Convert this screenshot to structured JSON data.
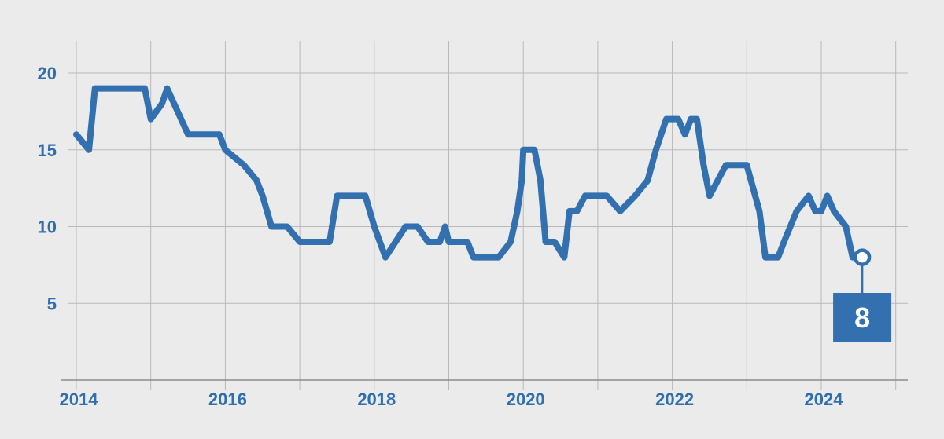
{
  "chart_data": {
    "type": "line",
    "title": "",
    "xlabel": "",
    "ylabel": "",
    "xlim": [
      2014,
      2025.1
    ],
    "ylim": [
      0,
      22
    ],
    "grid": true,
    "x_ticks": [
      2014,
      2016,
      2018,
      2020,
      2022,
      2024
    ],
    "x_tick_labels": [
      "2014",
      "2016",
      "2018",
      "2020",
      "2022",
      "2024"
    ],
    "x_minor_ticks": [
      2015,
      2017,
      2019,
      2021,
      2023,
      2025
    ],
    "y_ticks": [
      5,
      10,
      15,
      20
    ],
    "y_tick_labels": [
      "5",
      "10",
      "15",
      "20"
    ],
    "series": [
      {
        "color": "#3270b0",
        "points": [
          [
            2014.0,
            16
          ],
          [
            2014.17,
            15
          ],
          [
            2014.25,
            19
          ],
          [
            2014.5,
            19
          ],
          [
            2014.75,
            19
          ],
          [
            2014.92,
            19
          ],
          [
            2015.0,
            17
          ],
          [
            2015.15,
            18
          ],
          [
            2015.22,
            19
          ],
          [
            2015.5,
            16
          ],
          [
            2015.75,
            16
          ],
          [
            2015.92,
            16
          ],
          [
            2016.0,
            15
          ],
          [
            2016.25,
            14
          ],
          [
            2016.42,
            13
          ],
          [
            2016.5,
            12
          ],
          [
            2016.62,
            10
          ],
          [
            2016.83,
            10
          ],
          [
            2017.0,
            9
          ],
          [
            2017.25,
            9
          ],
          [
            2017.4,
            9
          ],
          [
            2017.5,
            12
          ],
          [
            2017.75,
            12
          ],
          [
            2017.88,
            12
          ],
          [
            2018.0,
            10
          ],
          [
            2018.15,
            8
          ],
          [
            2018.42,
            10
          ],
          [
            2018.58,
            10
          ],
          [
            2018.72,
            9
          ],
          [
            2018.88,
            9
          ],
          [
            2018.95,
            10
          ],
          [
            2019.0,
            9
          ],
          [
            2019.25,
            9
          ],
          [
            2019.33,
            8
          ],
          [
            2019.6,
            8
          ],
          [
            2019.67,
            8
          ],
          [
            2019.83,
            9
          ],
          [
            2019.92,
            11
          ],
          [
            2019.98,
            13
          ],
          [
            2020.0,
            15
          ],
          [
            2020.15,
            15
          ],
          [
            2020.23,
            13
          ],
          [
            2020.3,
            9
          ],
          [
            2020.42,
            9
          ],
          [
            2020.55,
            8
          ],
          [
            2020.62,
            11
          ],
          [
            2020.72,
            11
          ],
          [
            2020.83,
            12
          ],
          [
            2021.0,
            12
          ],
          [
            2021.12,
            12
          ],
          [
            2021.3,
            11
          ],
          [
            2021.5,
            12
          ],
          [
            2021.67,
            13
          ],
          [
            2021.78,
            15
          ],
          [
            2021.92,
            17
          ],
          [
            2022.08,
            17
          ],
          [
            2022.17,
            16
          ],
          [
            2022.25,
            17
          ],
          [
            2022.33,
            17
          ],
          [
            2022.42,
            14
          ],
          [
            2022.5,
            12
          ],
          [
            2022.72,
            14
          ],
          [
            2022.92,
            14
          ],
          [
            2023.0,
            14
          ],
          [
            2023.17,
            11
          ],
          [
            2023.25,
            8
          ],
          [
            2023.42,
            8
          ],
          [
            2023.5,
            9
          ],
          [
            2023.67,
            11
          ],
          [
            2023.83,
            12
          ],
          [
            2023.92,
            11
          ],
          [
            2024.0,
            11
          ],
          [
            2024.08,
            12
          ],
          [
            2024.17,
            11
          ],
          [
            2024.33,
            10
          ],
          [
            2024.42,
            8
          ],
          [
            2024.55,
            8
          ]
        ]
      }
    ],
    "annotation": {
      "x": 2024.55,
      "y": 8,
      "label": "8",
      "color": "#3270b0"
    }
  }
}
